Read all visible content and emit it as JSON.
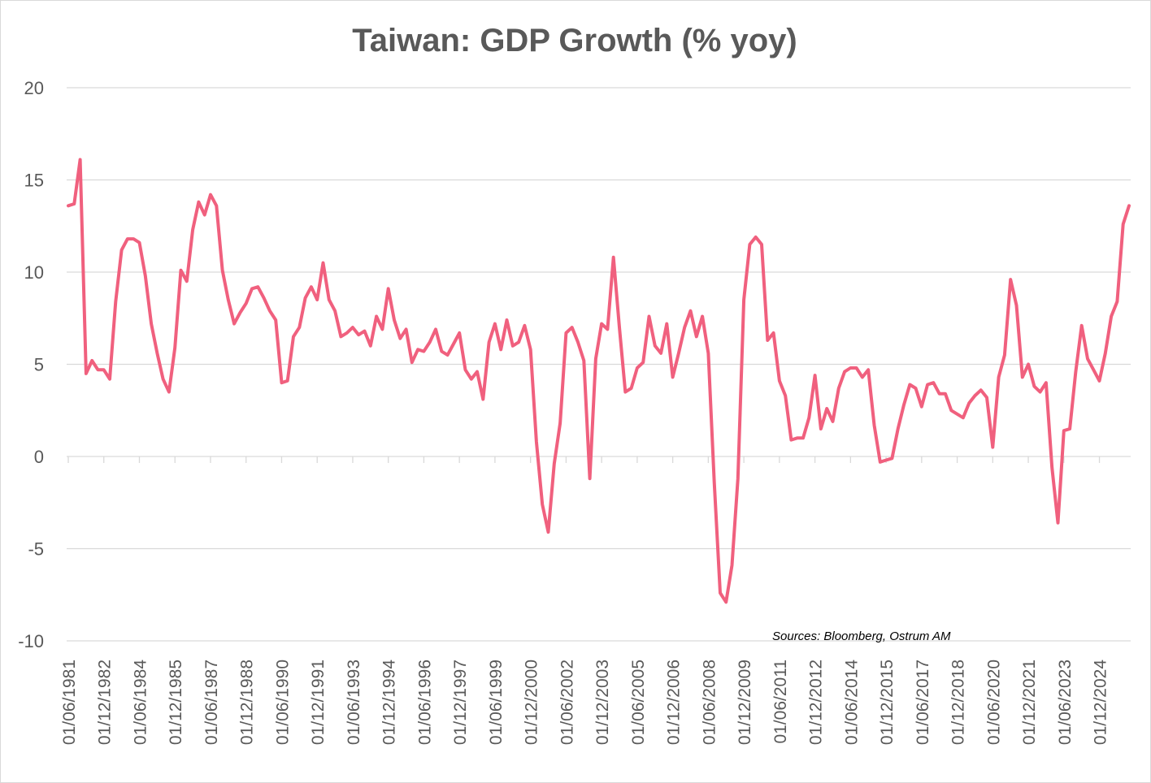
{
  "chart_data": {
    "type": "line",
    "title": "Taiwan: GDP Growth (% yoy)",
    "xlabel": "",
    "ylabel": "",
    "ylim": [
      -10,
      20
    ],
    "yticks": [
      20,
      15,
      10,
      5,
      0,
      -5,
      -10
    ],
    "grid": true,
    "legend": "none",
    "source": "Sources: Bloomberg, Ostrum AM",
    "xtick_labels": [
      "01/06/1981",
      "01/12/1982",
      "01/06/1984",
      "01/12/1985",
      "01/06/1987",
      "01/12/1988",
      "01/06/1990",
      "01/12/1991",
      "01/06/1993",
      "01/12/1994",
      "01/06/1996",
      "01/12/1997",
      "01/06/1999",
      "01/12/2000",
      "01/06/2002",
      "01/12/2003",
      "01/06/2005",
      "01/12/2006",
      "01/06/2008",
      "01/12/2009",
      "01/06/2011",
      "01/12/2012",
      "01/06/2014",
      "01/12/2015",
      "01/06/2017",
      "01/12/2018",
      "01/06/2020",
      "01/12/2021",
      "01/06/2023",
      "01/12/2024"
    ],
    "series": [
      {
        "color": "#f0607e",
        "x_start": "1981-06",
        "frequency": "quarterly",
        "values": [
          13.6,
          13.7,
          16.1,
          4.5,
          5.2,
          4.7,
          4.7,
          4.2,
          8.4,
          11.2,
          11.8,
          11.8,
          11.6,
          9.8,
          7.2,
          5.6,
          4.2,
          3.5,
          5.9,
          10.1,
          9.5,
          12.3,
          13.8,
          13.1,
          14.2,
          13.6,
          10.1,
          8.5,
          7.2,
          7.8,
          8.3,
          9.1,
          9.2,
          8.6,
          7.9,
          7.4,
          4.0,
          4.1,
          6.5,
          7.0,
          8.6,
          9.2,
          8.5,
          10.5,
          8.5,
          7.9,
          6.5,
          6.7,
          7.0,
          6.6,
          6.8,
          6.0,
          7.6,
          6.9,
          9.1,
          7.4,
          6.4,
          6.9,
          5.1,
          5.8,
          5.7,
          6.2,
          6.9,
          5.7,
          5.5,
          6.1,
          6.7,
          4.7,
          4.2,
          4.6,
          3.1,
          6.2,
          7.2,
          5.8,
          7.4,
          6.0,
          6.2,
          7.1,
          5.8,
          0.8,
          -2.6,
          -4.1,
          -0.4,
          1.8,
          6.7,
          7.0,
          6.2,
          5.2,
          -1.2,
          5.3,
          7.2,
          6.9,
          10.8,
          7.0,
          3.5,
          3.7,
          4.8,
          5.1,
          7.6,
          6.0,
          5.6,
          7.2,
          4.3,
          5.6,
          7.0,
          7.9,
          6.5,
          7.6,
          5.6,
          -1.4,
          -7.4,
          -7.9,
          -5.9,
          -1.2,
          8.5,
          11.5,
          11.9,
          11.5,
          6.3,
          6.7,
          4.1,
          3.3,
          0.9,
          1.0,
          1.0,
          2.1,
          4.4,
          1.5,
          2.6,
          1.9,
          3.7,
          4.6,
          4.8,
          4.8,
          4.3,
          4.7,
          1.7,
          -0.3,
          -0.2,
          -0.1,
          1.5,
          2.8,
          3.9,
          3.7,
          2.7,
          3.9,
          4.0,
          3.4,
          3.4,
          2.5,
          2.3,
          2.1,
          2.9,
          3.3,
          3.6,
          3.2,
          0.5,
          4.3,
          5.5,
          9.6,
          8.2,
          4.3,
          5.0,
          3.8,
          3.5,
          4.0,
          -0.6,
          -3.6,
          1.4,
          1.5,
          4.6,
          7.1,
          5.3,
          4.7,
          4.1,
          5.6,
          7.6,
          8.4,
          12.6,
          13.6
        ]
      }
    ]
  }
}
